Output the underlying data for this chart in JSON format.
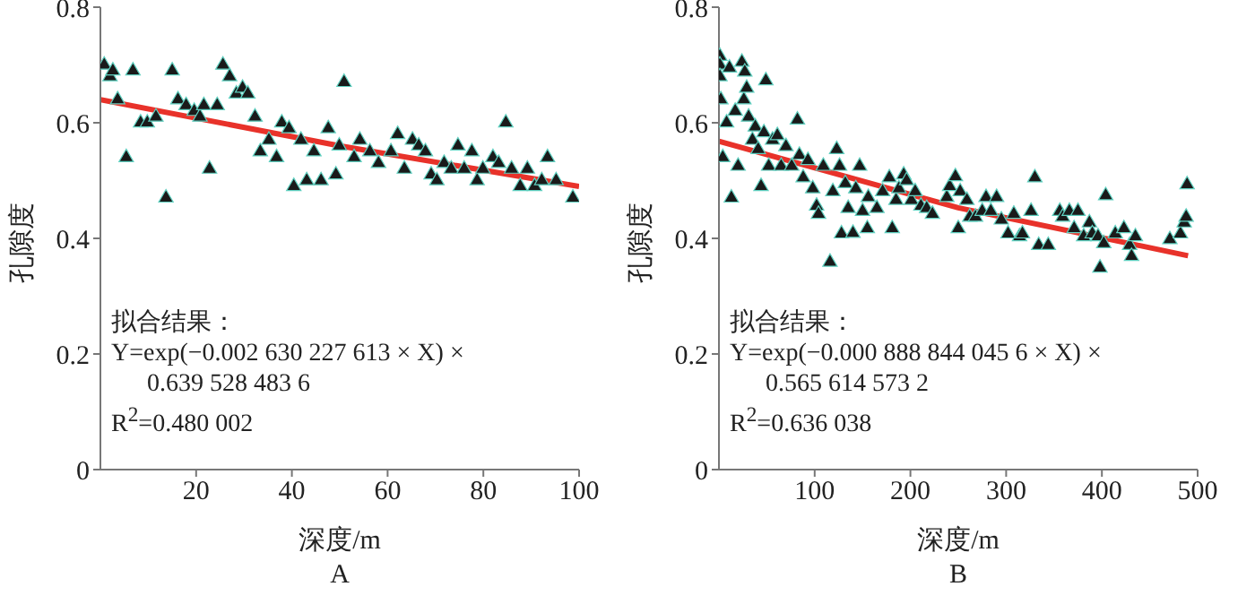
{
  "chart_data": [
    {
      "type": "scatter",
      "title": "A",
      "xlabel": "深度/m",
      "ylabel": "孔隙度",
      "xlim": [
        0,
        100
      ],
      "ylim": [
        0,
        0.8
      ],
      "xticks": [
        20,
        40,
        60,
        80,
        100
      ],
      "yticks": [
        0,
        0.2,
        0.4,
        0.6,
        0.8
      ],
      "annotations": [
        "拟合结果：",
        "Y=exp(−0.002 630 227 613 × X) ×",
        "0.639 528 483 6",
        "R$^{2}$=0.480 002"
      ],
      "series": [
        {
          "marker": "triangle",
          "color": "#1a1a1a",
          "x": [
            0.8,
            2,
            2.6,
            3.6,
            5.4,
            6.8,
            8.4,
            9.8,
            11.6,
            13.7,
            15,
            16.2,
            17.9,
            19.6,
            20.8,
            21.6,
            22.8,
            24.4,
            25.6,
            27,
            28.4,
            29.7,
            30.8,
            32.3,
            33.4,
            35.2,
            36.8,
            37.9,
            39.4,
            40.4,
            41.9,
            43.1,
            44.6,
            46.1,
            47.6,
            49.2,
            49.9,
            50.9,
            53,
            54.2,
            56.3,
            58.1,
            60.7,
            62.1,
            63.5,
            65.2,
            66.5,
            67.9,
            69.1,
            70.3,
            71.8,
            73.3,
            74.7,
            76,
            77.6,
            78.7,
            79.9,
            82,
            83.2,
            84.7,
            85.9,
            87.7,
            89.2,
            90.7,
            92.2,
            93.4,
            95.2,
            98.7
          ],
          "values": [
            0.7,
            0.68,
            0.69,
            0.64,
            0.54,
            0.69,
            0.6,
            0.6,
            0.61,
            0.47,
            0.69,
            0.64,
            0.63,
            0.62,
            0.61,
            0.63,
            0.52,
            0.63,
            0.7,
            0.68,
            0.65,
            0.66,
            0.65,
            0.61,
            0.55,
            0.57,
            0.54,
            0.6,
            0.59,
            0.49,
            0.57,
            0.5,
            0.55,
            0.5,
            0.59,
            0.51,
            0.56,
            0.67,
            0.54,
            0.57,
            0.55,
            0.53,
            0.55,
            0.58,
            0.52,
            0.57,
            0.56,
            0.55,
            0.51,
            0.5,
            0.53,
            0.52,
            0.56,
            0.52,
            0.55,
            0.5,
            0.52,
            0.54,
            0.53,
            0.6,
            0.52,
            0.49,
            0.52,
            0.49,
            0.5,
            0.54,
            0.5,
            0.47
          ]
        },
        {
          "type": "line",
          "color": "#e8322a",
          "x": [
            0,
            50,
            100
          ],
          "values": [
            0.64,
            0.56,
            0.49
          ]
        }
      ]
    },
    {
      "type": "scatter",
      "title": "B",
      "xlabel": "深度/m",
      "ylabel": "孔隙度",
      "xlim": [
        0,
        500
      ],
      "ylim": [
        0,
        0.8
      ],
      "xticks": [
        100,
        200,
        300,
        400,
        500
      ],
      "yticks": [
        0,
        0.2,
        0.4,
        0.6,
        0.8
      ],
      "annotations": [
        "拟合结果：",
        "Y=exp(−0.000 888 844 045 6 × X) ×",
        "0.565 614 573 2",
        "R$^{2}$=0.636 038"
      ],
      "series": [
        {
          "marker": "triangle",
          "color": "#1a1a1a",
          "x": [
            1,
            1,
            1,
            2,
            4,
            8,
            11,
            13,
            17,
            20,
            24,
            26,
            27,
            29,
            31,
            35,
            38,
            41,
            44,
            47,
            49,
            52,
            56,
            61,
            65,
            70,
            76,
            82,
            84,
            88,
            93,
            98,
            102,
            104,
            109,
            116,
            119,
            123,
            126,
            128,
            132,
            135,
            140,
            143,
            147,
            150,
            155,
            156,
            165,
            171,
            178,
            181,
            185,
            188,
            193,
            196,
            201,
            205,
            211,
            217,
            223,
            238,
            241,
            247,
            250,
            252,
            259,
            262,
            268,
            275,
            279,
            284,
            290,
            295,
            302,
            308,
            314,
            317,
            326,
            330,
            334,
            344,
            356,
            359,
            366,
            371,
            375,
            381,
            387,
            390,
            396,
            398,
            402,
            404,
            414,
            423,
            429,
            431,
            435,
            471,
            482,
            486,
            488,
            489
          ],
          "values": [
            0.715,
            0.7,
            0.68,
            0.64,
            0.54,
            0.6,
            0.695,
            0.47,
            0.62,
            0.525,
            0.705,
            0.64,
            0.688,
            0.66,
            0.61,
            0.57,
            0.593,
            0.554,
            0.49,
            0.583,
            0.673,
            0.525,
            0.57,
            0.578,
            0.525,
            0.559,
            0.525,
            0.605,
            0.544,
            0.505,
            0.535,
            0.486,
            0.456,
            0.442,
            0.525,
            0.359,
            0.481,
            0.554,
            0.525,
            0.408,
            0.495,
            0.452,
            0.409,
            0.486,
            0.525,
            0.447,
            0.417,
            0.471,
            0.452,
            0.481,
            0.505,
            0.417,
            0.466,
            0.486,
            0.51,
            0.5,
            0.466,
            0.481,
            0.456,
            0.452,
            0.442,
            0.471,
            0.49,
            0.507,
            0.417,
            0.481,
            0.466,
            0.437,
            0.437,
            0.447,
            0.471,
            0.447,
            0.471,
            0.432,
            0.408,
            0.442,
            0.403,
            0.408,
            0.447,
            0.505,
            0.388,
            0.388,
            0.447,
            0.437,
            0.447,
            0.417,
            0.447,
            0.403,
            0.427,
            0.408,
            0.403,
            0.349,
            0.391,
            0.474,
            0.408,
            0.417,
            0.388,
            0.369,
            0.403,
            0.398,
            0.408,
            0.427,
            0.437,
            0.493
          ]
        },
        {
          "type": "line",
          "color": "#e8322a",
          "x": [
            0,
            250,
            490
          ],
          "values": [
            0.568,
            0.453,
            0.37
          ]
        }
      ]
    }
  ]
}
